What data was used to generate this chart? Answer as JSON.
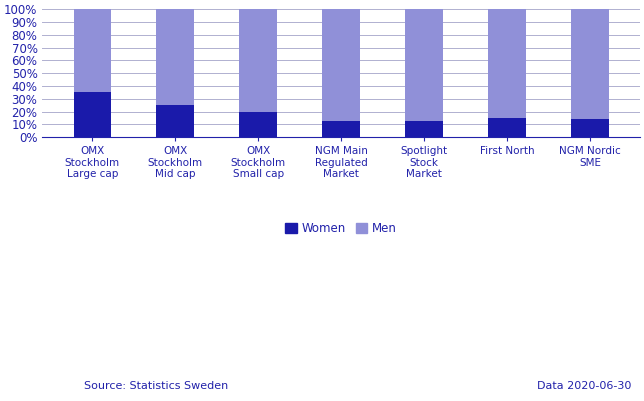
{
  "categories": [
    "OMX\nStockholm\nLarge cap",
    "OMX\nStockholm\nMid cap",
    "OMX\nStockholm\nSmall cap",
    "NGM Main\nRegulated\nMarket",
    "Spotlight\nStock\nMarket",
    "First North",
    "NGM Nordic\nSME"
  ],
  "women_values": [
    35,
    25,
    20,
    13,
    13,
    15,
    14
  ],
  "men_values": [
    65,
    75,
    80,
    87,
    87,
    85,
    86
  ],
  "women_color": "#1a1aaa",
  "men_color": "#9090d8",
  "ylabel_ticks": [
    "0%",
    "10%",
    "20%",
    "30%",
    "40%",
    "50%",
    "60%",
    "70%",
    "80%",
    "90%",
    "100%"
  ],
  "ytick_values": [
    0,
    10,
    20,
    30,
    40,
    50,
    60,
    70,
    80,
    90,
    100
  ],
  "source_text": "Source: Statistics Sweden",
  "date_text": "Data 2020-06-30",
  "legend_women": "Women",
  "legend_men": "Men",
  "bar_width": 0.45,
  "background_color": "#ffffff",
  "grid_color": "#b0b0d0",
  "axis_color": "#2222aa",
  "text_color": "#2222aa",
  "tick_fontsize": 8.5,
  "xlabel_fontsize": 7.5,
  "legend_fontsize": 8.5,
  "source_fontsize": 8,
  "figwidth": 6.44,
  "figheight": 4.01
}
